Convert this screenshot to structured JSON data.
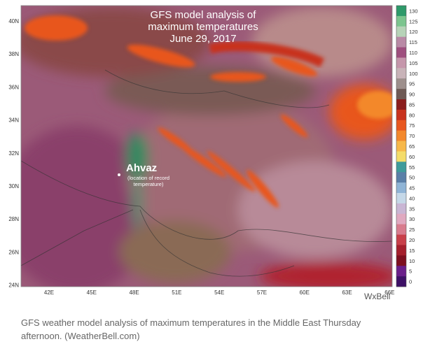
{
  "map": {
    "title_lines": [
      "GFS model analysis of",
      "maximum temperatures",
      "June 29, 2017"
    ],
    "city": "Ahvaz",
    "city_note_lines": [
      "(location of record",
      "temperature)"
    ],
    "lat_labels": [
      "40N",
      "38N",
      "36N",
      "34N",
      "32N",
      "30N",
      "28N",
      "26N",
      "24N"
    ],
    "lon_labels": [
      "42E",
      "45E",
      "48E",
      "51E",
      "54E",
      "57E",
      "60E",
      "63E",
      "66E"
    ],
    "brand": "WxBell",
    "colorbar": {
      "ticks": [
        130,
        125,
        120,
        115,
        110,
        105,
        100,
        95,
        90,
        85,
        80,
        75,
        70,
        65,
        60,
        55,
        50,
        45,
        40,
        35,
        30,
        25,
        20,
        15,
        10,
        5,
        0
      ],
      "colors": [
        "#2e9a6a",
        "#7cc58f",
        "#b7d3b8",
        "#b98aa6",
        "#9e4f7e",
        "#c596ab",
        "#c8b3b8",
        "#9d8f8c",
        "#6e5a55",
        "#8a1d1d",
        "#c8321e",
        "#e8571f",
        "#f3882c",
        "#f7b84a",
        "#f4dc6a",
        "#3f9b9b",
        "#5a7fa8",
        "#8fb4d6",
        "#c5d8e8",
        "#c9b6d4",
        "#e0a9c0",
        "#d87c8e",
        "#c8404a",
        "#a5202d",
        "#7d1020",
        "#6a1f8a",
        "#3d1066"
      ]
    }
  },
  "caption": "GFS weather model analysis of maximum temperatures in the Middle East Thursday afternoon. (WeatherBell.com)"
}
